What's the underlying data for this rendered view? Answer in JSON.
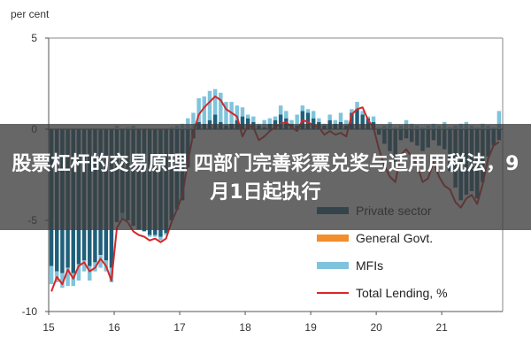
{
  "chart_data": {
    "type": "bar",
    "ylabel": "per cent",
    "ylim": [
      -10,
      5
    ],
    "yticks": [
      "5",
      "0",
      "-5",
      "-10"
    ],
    "xtick_labels": [
      "15",
      "16",
      "17",
      "18",
      "19",
      "20",
      "21"
    ],
    "x": [
      "2015-01",
      "2015-02",
      "2015-03",
      "2015-04",
      "2015-05",
      "2015-06",
      "2015-07",
      "2015-08",
      "2015-09",
      "2015-10",
      "2015-11",
      "2015-12",
      "2016-01",
      "2016-02",
      "2016-03",
      "2016-04",
      "2016-05",
      "2016-06",
      "2016-07",
      "2016-08",
      "2016-09",
      "2016-10",
      "2016-11",
      "2016-12",
      "2017-01",
      "2017-02",
      "2017-03",
      "2017-04",
      "2017-05",
      "2017-06",
      "2017-07",
      "2017-08",
      "2017-09",
      "2017-10",
      "2017-11",
      "2017-12",
      "2018-01",
      "2018-02",
      "2018-03",
      "2018-04",
      "2018-05",
      "2018-06",
      "2018-07",
      "2018-08",
      "2018-09",
      "2018-10",
      "2018-11",
      "2018-12",
      "2019-01",
      "2019-02",
      "2019-03",
      "2019-04",
      "2019-05",
      "2019-06",
      "2019-07",
      "2019-08",
      "2019-09",
      "2019-10",
      "2019-11",
      "2019-12",
      "2020-01",
      "2020-02",
      "2020-03",
      "2020-04",
      "2020-05",
      "2020-06",
      "2020-07",
      "2020-08",
      "2020-09",
      "2020-10",
      "2020-11",
      "2020-12",
      "2021-01",
      "2021-02",
      "2021-03",
      "2021-04",
      "2021-05",
      "2021-06",
      "2021-07",
      "2021-08",
      "2021-09",
      "2021-10",
      "2021-11"
    ],
    "series": [
      {
        "name": "Private sector",
        "color": "#1f5f7a",
        "values": [
          -7.5,
          -7.8,
          -7.9,
          -7.6,
          -7.9,
          -7.4,
          -7.2,
          -7.5,
          -7.3,
          -6.9,
          -7.2,
          -7.6,
          -5.1,
          -4.6,
          -5.0,
          -5.3,
          -5.5,
          -5.6,
          -5.8,
          -5.8,
          -5.9,
          -5.7,
          -5.0,
          -4.4,
          -3.9,
          -2.1,
          -0.5,
          0.4,
          0.3,
          0.5,
          0.8,
          0.4,
          0.2,
          0.3,
          0.5,
          0.7,
          0.6,
          0.4,
          0.2,
          0.1,
          0.3,
          0.5,
          0.8,
          0.6,
          0.3,
          0.2,
          1.0,
          0.9,
          0.6,
          0.4,
          0.2,
          0.5,
          0.3,
          0.4,
          0.2,
          0.9,
          1.1,
          0.8,
          0.6,
          0.4,
          -0.3,
          -0.8,
          -1.2,
          -1.8,
          -0.6,
          -0.5,
          -0.7,
          -0.9,
          -1.2,
          -1.0,
          -0.6,
          -0.9,
          -1.1,
          -2.3,
          -3.2,
          -3.9,
          -3.6,
          -3.4,
          -3.8,
          -2.9,
          -1.5,
          -0.9,
          -0.6
        ]
      },
      {
        "name": "General Govt.",
        "color": "#f28e2b",
        "values": [
          0,
          0,
          0,
          0,
          0,
          0,
          0,
          0,
          0,
          0,
          0,
          0,
          0,
          0,
          0,
          0,
          0,
          0,
          0,
          0,
          0,
          0,
          0,
          0,
          0,
          0,
          0,
          0,
          0,
          0,
          0,
          0,
          0,
          0,
          0,
          0,
          0,
          0,
          0,
          0,
          0,
          0,
          0,
          0,
          0,
          0,
          0,
          0,
          0,
          0,
          0,
          0,
          0,
          0,
          0,
          0,
          0,
          0,
          0,
          0,
          0,
          0,
          0,
          0,
          0,
          0,
          0,
          0,
          0,
          0,
          0,
          0,
          0,
          0,
          0,
          0,
          0,
          0,
          0,
          0,
          0,
          0,
          0
        ]
      },
      {
        "name": "MFIs",
        "color": "#7fc4dc",
        "values": [
          -1.0,
          -0.6,
          -0.8,
          -1.0,
          -0.7,
          -0.9,
          -0.6,
          -0.8,
          -0.5,
          -0.7,
          -0.6,
          -0.8,
          0.2,
          -0.3,
          0.1,
          0.2,
          0.0,
          0.0,
          -0.1,
          -0.1,
          -0.2,
          -0.1,
          0.1,
          0.2,
          0.3,
          0.6,
          0.9,
          1.3,
          1.5,
          1.6,
          1.4,
          1.6,
          1.3,
          1.2,
          0.8,
          0.5,
          0.2,
          0.3,
          0.1,
          0.4,
          0.3,
          0.2,
          0.5,
          0.4,
          0.2,
          0.6,
          0.3,
          0.2,
          0.4,
          0.2,
          0.1,
          0.3,
          0.2,
          0.5,
          0.3,
          0.2,
          0.4,
          0.2,
          0.1,
          0.3,
          0.1,
          0.2,
          0.4,
          0.1,
          0.2,
          0.5,
          0.3,
          0.2,
          0.1,
          0.2,
          0.3,
          0.2,
          0.4,
          0.1,
          0.2,
          0.3,
          0.4,
          0.2,
          0.1,
          0.3,
          0.2,
          0.1,
          1.0
        ]
      },
      {
        "name": "Total Lending, %",
        "color": "#d62728",
        "type": "line",
        "values": [
          -8.9,
          -8.1,
          -8.5,
          -7.7,
          -8.2,
          -7.5,
          -7.3,
          -7.8,
          -7.6,
          -7.1,
          -7.5,
          -8.3,
          -5.4,
          -4.9,
          -5.1,
          -5.6,
          -5.8,
          -5.9,
          -6.1,
          -6.0,
          -6.2,
          -6.0,
          -5.1,
          -4.4,
          -3.6,
          -1.8,
          -0.2,
          0.8,
          1.2,
          1.5,
          1.8,
          1.6,
          1.1,
          0.9,
          0.7,
          -0.4,
          0.2,
          0.1,
          -0.6,
          -0.4,
          -0.1,
          0.1,
          0.3,
          0.4,
          0.1,
          -0.1,
          0.5,
          0.4,
          0.2,
          0.1,
          -0.3,
          -0.1,
          -0.3,
          -0.2,
          -0.4,
          0.8,
          1.1,
          1.2,
          0.5,
          0.1,
          -1.1,
          -2.0,
          -2.6,
          -2.9,
          -1.4,
          -1.1,
          -1.5,
          -2.0,
          -2.9,
          -2.7,
          -1.8,
          -2.6,
          -3.1,
          -3.3,
          -4.0,
          -4.3,
          -3.8,
          -3.6,
          -4.1,
          -3.0,
          -1.6,
          -0.9,
          -0.7
        ]
      }
    ],
    "legend_position": "bottom-right",
    "grid": false
  },
  "overlay": {
    "text": "股票杠杆的交易原理 四部门完善彩票兑奖与适用用税法，9月1日起执行"
  }
}
